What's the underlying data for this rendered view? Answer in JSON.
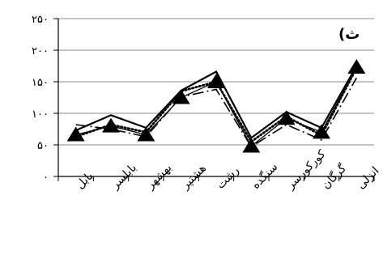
{
  "chart_data": {
    "type": "line",
    "panel_label": "(ث",
    "categories": [
      "بابل",
      "بابلسر",
      "بهشهر",
      "هشتپر",
      "رشت",
      "سنگده",
      "کورکورسر",
      "گرگان",
      "انزلی"
    ],
    "ylim": [
      0,
      250
    ],
    "yticks": [
      "۰",
      "۵۰",
      "۱۰۰",
      "۱۵۰",
      "۲۰۰",
      "۲۵۰"
    ],
    "grid": true,
    "legend": "none",
    "series": [
      {
        "style": "solid",
        "values": [
          73,
          97,
          77,
          136,
          166,
          61,
          102,
          77,
          175
        ]
      },
      {
        "style": "dotted",
        "values": [
          63,
          82,
          70,
          135,
          150,
          55,
          95,
          65,
          172
        ]
      },
      {
        "style": "dashdot",
        "values": [
          82,
          75,
          63,
          126,
          138,
          47,
          82,
          58,
          156
        ]
      },
      {
        "style": "markers",
        "marker": "triangle",
        "values": [
          66,
          80,
          66,
          125,
          150,
          48,
          92,
          70,
          173
        ]
      }
    ]
  }
}
